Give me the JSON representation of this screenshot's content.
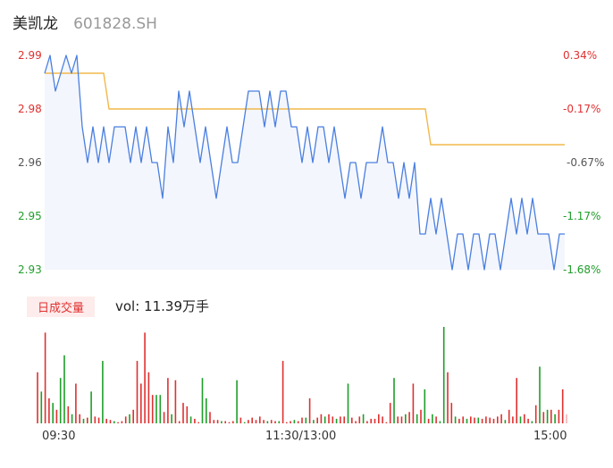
{
  "header": {
    "name": "美凯龙",
    "code": "601828.SH"
  },
  "volume_panel": {
    "tab_label": "日成交量",
    "vol_label": "vol: 11.39万手"
  },
  "colors": {
    "price_line": "#4a7fe0",
    "avg_line": "#f2b84b",
    "area_fill": "#f3f6fd",
    "up": "#e03030",
    "down": "#1f9e2a",
    "flat_bar": "#f5b4b4"
  },
  "chart_data": [
    {
      "type": "line",
      "title": "",
      "price_axis": {
        "labels": [
          "2.99",
          "2.98",
          "2.96",
          "2.95",
          "2.93"
        ],
        "values": [
          2.99,
          2.98,
          2.96,
          2.95,
          2.93
        ],
        "colors": [
          "#e03030",
          "#e03030",
          "#555555",
          "#1f9e2a",
          "#1f9e2a"
        ]
      },
      "pct_axis": {
        "labels": [
          "0.34%",
          "-0.17%",
          "-0.67%",
          "-1.17%",
          "-1.68%"
        ],
        "colors": [
          "#e03030",
          "#e03030",
          "#555555",
          "#1f9e2a",
          "#1f9e2a"
        ]
      },
      "ylim": [
        2.93,
        2.99
      ],
      "x_ticks": [
        "09:30",
        "11:30/13:00",
        "15:00"
      ],
      "series": [
        {
          "values": [
            2.985,
            2.99,
            2.98,
            2.985,
            2.99,
            2.985,
            2.99,
            2.97,
            2.96,
            2.97,
            2.96,
            2.97,
            2.96,
            2.97,
            2.97,
            2.97,
            2.96,
            2.97,
            2.96,
            2.97,
            2.96,
            2.96,
            2.95,
            2.97,
            2.96,
            2.98,
            2.97,
            2.98,
            2.97,
            2.96,
            2.97,
            2.96,
            2.95,
            2.96,
            2.97,
            2.96,
            2.96,
            2.97,
            2.98,
            2.98,
            2.98,
            2.97,
            2.98,
            2.97,
            2.98,
            2.98,
            2.97,
            2.97,
            2.96,
            2.97,
            2.96,
            2.97,
            2.97,
            2.96,
            2.97,
            2.96,
            2.95,
            2.96,
            2.96,
            2.95,
            2.96,
            2.96,
            2.96,
            2.97,
            2.96,
            2.96,
            2.95,
            2.96,
            2.95,
            2.96,
            2.94,
            2.94,
            2.95,
            2.94,
            2.95,
            2.94,
            2.93,
            2.94,
            2.94,
            2.93,
            2.94,
            2.94,
            2.93,
            2.94,
            2.94,
            2.93,
            2.94,
            2.95,
            2.94,
            2.95,
            2.94,
            2.95,
            2.94,
            2.94,
            2.94,
            2.93,
            2.94,
            2.94
          ]
        },
        {
          "values": [
            2.985,
            2.985,
            2.985,
            2.985,
            2.985,
            2.985,
            2.985,
            2.985,
            2.985,
            2.985,
            2.985,
            2.985,
            2.975,
            2.975,
            2.975,
            2.975,
            2.975,
            2.975,
            2.975,
            2.975,
            2.975,
            2.975,
            2.975,
            2.975,
            2.975,
            2.975,
            2.975,
            2.975,
            2.975,
            2.975,
            2.975,
            2.975,
            2.975,
            2.975,
            2.975,
            2.975,
            2.975,
            2.975,
            2.975,
            2.975,
            2.975,
            2.975,
            2.975,
            2.975,
            2.975,
            2.975,
            2.975,
            2.975,
            2.975,
            2.975,
            2.975,
            2.975,
            2.975,
            2.975,
            2.975,
            2.975,
            2.975,
            2.975,
            2.975,
            2.975,
            2.975,
            2.975,
            2.975,
            2.975,
            2.975,
            2.975,
            2.975,
            2.975,
            2.975,
            2.975,
            2.975,
            2.975,
            2.965,
            2.965,
            2.965,
            2.965,
            2.965,
            2.965,
            2.965,
            2.965,
            2.965,
            2.965,
            2.965,
            2.965,
            2.965,
            2.965,
            2.965,
            2.965,
            2.965,
            2.965,
            2.965,
            2.965,
            2.965,
            2.965,
            2.965,
            2.965,
            2.965,
            2.965
          ]
        }
      ]
    },
    {
      "type": "bar",
      "title": "",
      "series": [
        {
          "values": [
            45,
            28,
            80,
            22,
            18,
            12,
            40,
            60,
            15,
            8,
            35,
            8,
            4,
            5,
            28,
            6,
            5,
            55,
            4,
            3,
            2,
            1,
            2,
            6,
            8,
            12,
            55,
            35,
            80,
            45,
            25,
            25,
            25,
            10,
            40,
            8,
            38,
            2,
            18,
            15,
            6,
            4,
            1,
            40,
            22,
            10,
            3,
            3,
            2,
            2,
            1,
            2,
            38,
            5,
            1,
            3,
            5,
            3,
            6,
            3,
            2,
            3,
            2,
            2,
            55,
            1,
            2,
            3,
            2,
            5,
            5,
            22,
            3,
            5,
            8,
            6,
            8,
            6,
            4,
            6,
            6,
            35,
            5,
            2,
            6,
            8,
            2,
            4,
            4,
            8,
            6,
            1,
            18,
            40,
            6,
            6,
            8,
            10,
            35,
            8,
            12,
            30,
            4,
            8,
            6,
            2,
            85,
            45,
            18,
            6,
            4,
            6,
            4,
            6,
            5,
            5,
            4,
            6,
            5,
            4,
            6,
            8,
            3,
            12,
            6,
            40,
            6,
            8,
            4,
            2,
            16,
            50,
            10,
            12,
            12,
            8,
            12,
            30,
            8
          ],
          "colors": [
            "u",
            "d",
            "u",
            "u",
            "d",
            "u",
            "d",
            "d",
            "u",
            "d",
            "u",
            "u",
            "d",
            "u",
            "d",
            "u",
            "u",
            "d",
            "u",
            "u",
            "d",
            "u",
            "u",
            "u",
            "d",
            "u",
            "u",
            "u",
            "u",
            "u",
            "u",
            "d",
            "d",
            "u",
            "u",
            "d",
            "u",
            "u",
            "u",
            "u",
            "d",
            "u",
            "u",
            "d",
            "d",
            "u",
            "u",
            "u",
            "d",
            "u",
            "u",
            "u",
            "d",
            "u",
            "d",
            "u",
            "u",
            "u",
            "u",
            "u",
            "d",
            "u",
            "u",
            "d",
            "u",
            "u",
            "u",
            "d",
            "u",
            "u",
            "d",
            "u",
            "d",
            "u",
            "u",
            "d",
            "u",
            "u",
            "d",
            "u",
            "u",
            "d",
            "u",
            "u",
            "u",
            "d",
            "u",
            "u",
            "u",
            "u",
            "u",
            "u",
            "u",
            "d",
            "u",
            "u",
            "d",
            "u",
            "u",
            "d",
            "u",
            "d",
            "u",
            "d",
            "u",
            "d",
            "d",
            "u",
            "u",
            "d",
            "u",
            "u",
            "d",
            "u",
            "u",
            "d",
            "u",
            "u",
            "u",
            "u",
            "u",
            "u",
            "d",
            "u",
            "u",
            "u",
            "d",
            "u",
            "u",
            "d",
            "u",
            "d",
            "u",
            "d",
            "u",
            "d",
            "u",
            "u",
            "f"
          ]
        }
      ]
    }
  ]
}
